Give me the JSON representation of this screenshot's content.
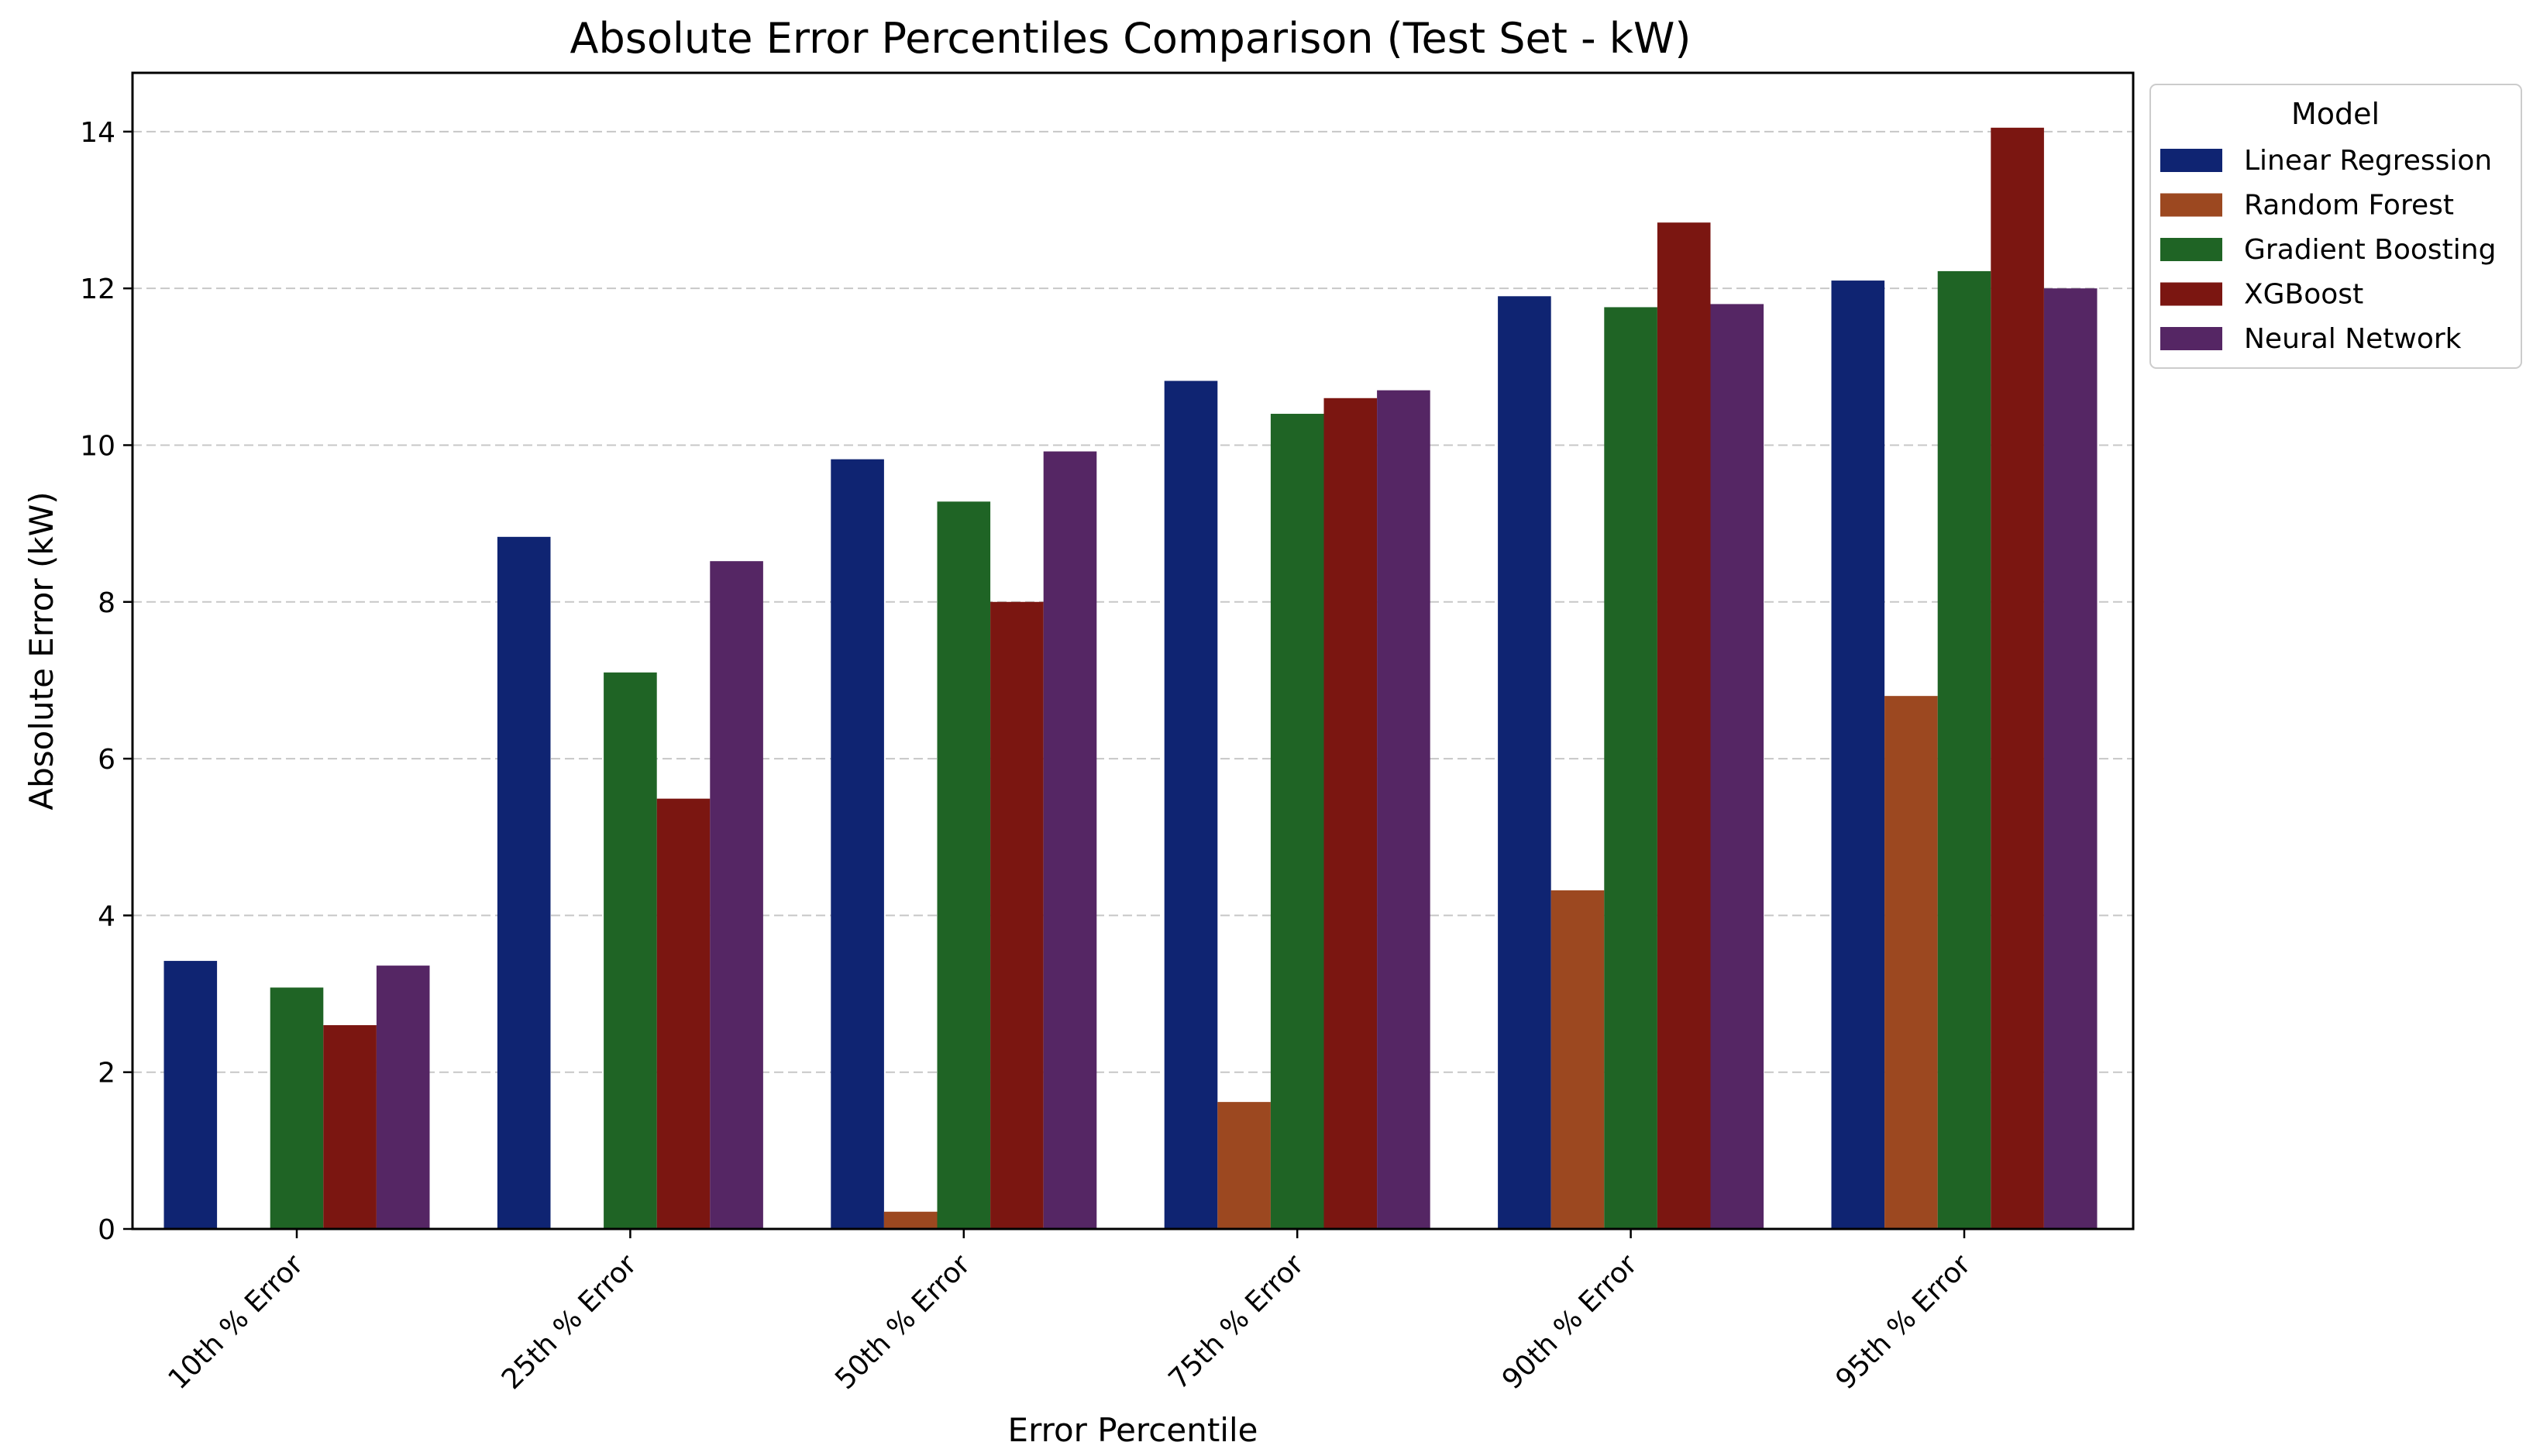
{
  "chart_data": {
    "type": "bar",
    "title": "Absolute Error Percentiles Comparison (Test Set - kW)",
    "xlabel": "Error Percentile",
    "ylabel": "Absolute Error (kW)",
    "ylim": [
      0,
      14.75
    ],
    "yticks": [
      0,
      2,
      4,
      6,
      8,
      10,
      12,
      14
    ],
    "grid": "y dashed",
    "categories": [
      "10th % Error",
      "25th % Error",
      "50th % Error",
      "75th % Error",
      "90th % Error",
      "95th % Error"
    ],
    "legend": {
      "title": "Model",
      "placement": "outside top-right"
    },
    "series": [
      {
        "name": "Linear Regression",
        "color": "#0f2472",
        "values": [
          3.42,
          8.83,
          9.82,
          10.82,
          11.9,
          12.1
        ]
      },
      {
        "name": "Random Forest",
        "color": "#9c4820",
        "values": [
          0.0,
          0.0,
          0.22,
          1.62,
          4.32,
          6.8
        ]
      },
      {
        "name": "Gradient Boosting",
        "color": "#1f6425",
        "values": [
          3.08,
          7.1,
          9.28,
          10.4,
          11.76,
          12.22
        ]
      },
      {
        "name": "XGBoost",
        "color": "#7b1611",
        "values": [
          2.6,
          5.49,
          8.0,
          10.6,
          12.84,
          14.05
        ]
      },
      {
        "name": "Neural Network",
        "color": "#552664",
        "values": [
          3.36,
          8.52,
          9.92,
          10.7,
          11.8,
          12.0
        ]
      }
    ]
  }
}
